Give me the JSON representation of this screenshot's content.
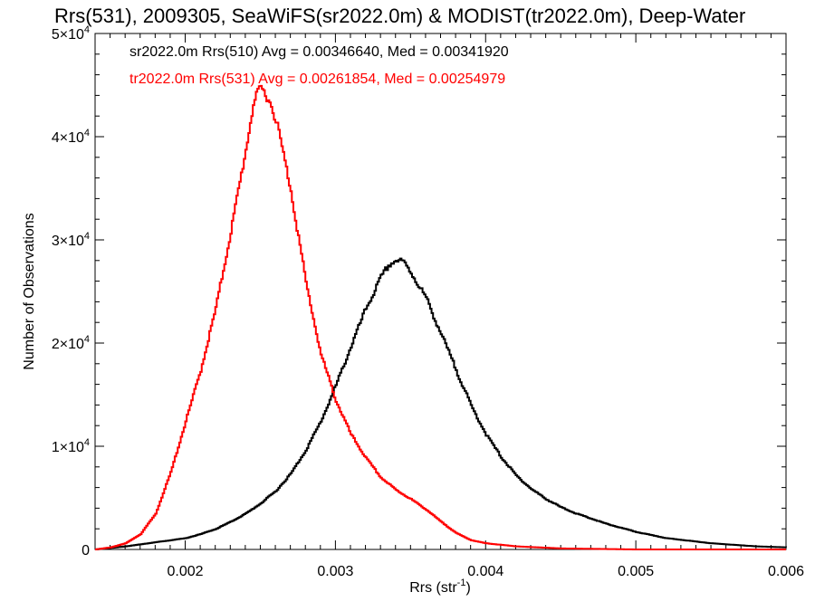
{
  "chart_data": {
    "type": "line",
    "title": "Rrs(531), 2009305, SeaWiFS(sr2022.0m) & MODIST(tr2022.0m), Deep-Water",
    "xlabel": "Rrs (str",
    "xlabel_sup": "-1",
    "xlabel_close": ")",
    "ylabel": "Number of Observations",
    "xlim": [
      0.0014,
      0.006
    ],
    "ylim": [
      0,
      50000
    ],
    "x_ticks": [
      0.002,
      0.003,
      0.004,
      0.005,
      0.006
    ],
    "x_tick_labels": [
      "0.002",
      "0.003",
      "0.004",
      "0.005",
      "0.006"
    ],
    "y_ticks": [
      0,
      10000,
      20000,
      30000,
      40000,
      50000
    ],
    "y_tick_labels": [
      {
        "mant": "0",
        "exp": ""
      },
      {
        "mant": "1×10",
        "exp": "4"
      },
      {
        "mant": "2×10",
        "exp": "4"
      },
      {
        "mant": "3×10",
        "exp": "4"
      },
      {
        "mant": "4×10",
        "exp": "4"
      },
      {
        "mant": "5×10",
        "exp": "4"
      }
    ],
    "grid": false,
    "legend_position": "top-left",
    "series": [
      {
        "name": "sr2022.0m Rrs(510) Avg = 0.00346640, Med = 0.00341920",
        "color": "#000000",
        "x": [
          0.0014,
          0.0016,
          0.0018,
          0.002,
          0.0021,
          0.0022,
          0.0023,
          0.0024,
          0.0025,
          0.0026,
          0.0027,
          0.0028,
          0.0029,
          0.003,
          0.0031,
          0.0032,
          0.0033,
          0.00335,
          0.0034,
          0.00345,
          0.0035,
          0.0036,
          0.0037,
          0.0038,
          0.0039,
          0.004,
          0.0041,
          0.0042,
          0.0043,
          0.0044,
          0.0045,
          0.0046,
          0.0048,
          0.005,
          0.0052,
          0.0055,
          0.0058,
          0.006
        ],
        "y": [
          0,
          300,
          700,
          1100,
          1500,
          2000,
          2700,
          3500,
          4500,
          5700,
          7400,
          9700,
          12500,
          16000,
          19800,
          23500,
          26500,
          27700,
          28200,
          28000,
          27000,
          24500,
          21000,
          17500,
          14000,
          11200,
          9000,
          7200,
          5900,
          4900,
          4100,
          3500,
          2500,
          1700,
          1100,
          600,
          300,
          200
        ]
      },
      {
        "name": "tr2022.0m Rrs(531) Avg = 0.00261854, Med = 0.00254979",
        "color": "#ff0000",
        "x": [
          0.0014,
          0.0015,
          0.0016,
          0.0017,
          0.0018,
          0.0019,
          0.002,
          0.0021,
          0.0022,
          0.0023,
          0.0024,
          0.00245,
          0.0025,
          0.00255,
          0.0026,
          0.0027,
          0.0028,
          0.0029,
          0.003,
          0.0031,
          0.0032,
          0.0033,
          0.0034,
          0.0035,
          0.0036,
          0.0037,
          0.0038,
          0.0039,
          0.004,
          0.0042,
          0.0045,
          0.005,
          0.006
        ],
        "y": [
          0,
          200,
          600,
          1500,
          3500,
          7500,
          12500,
          17500,
          23500,
          31000,
          39000,
          43500,
          45000,
          44000,
          42000,
          35000,
          26000,
          19000,
          14500,
          11200,
          8900,
          7000,
          5800,
          4900,
          3900,
          2700,
          1600,
          900,
          600,
          300,
          100,
          0,
          0
        ]
      }
    ]
  }
}
